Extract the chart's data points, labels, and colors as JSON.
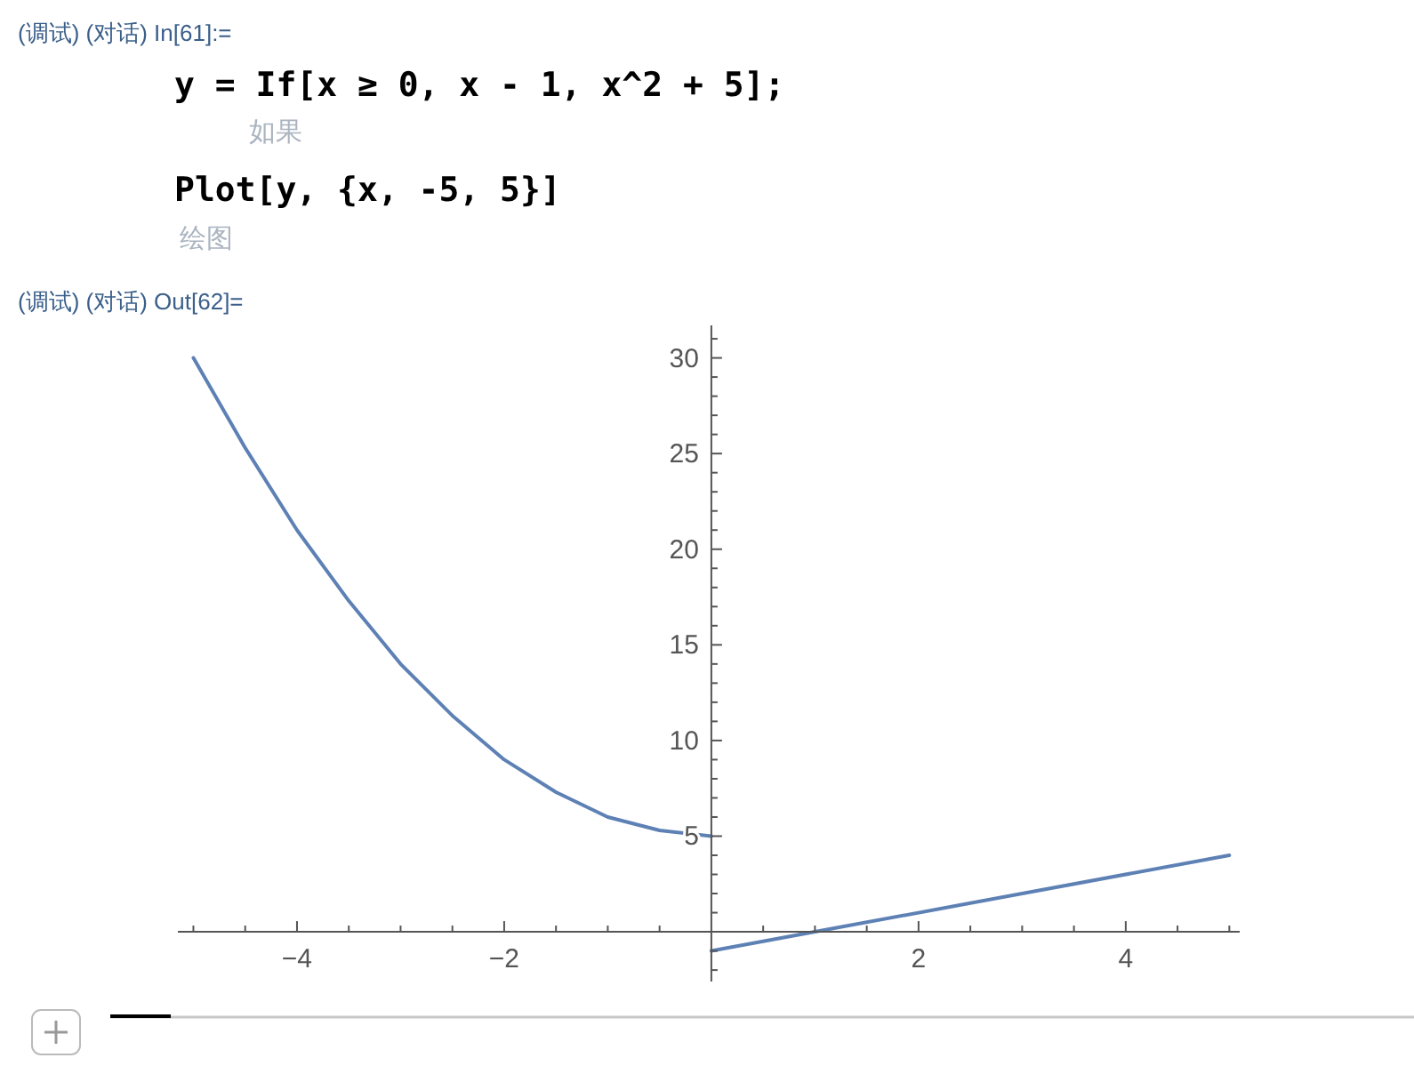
{
  "chart_data": {
    "type": "line",
    "annotations": [
      "(调试) (对话) In[61]:=",
      "y = If[x ≥ 0, x - 1, x^2 + 5];",
      "如果",
      "Plot[y, {x, -5, 5}]",
      "绘图",
      "(调试) (对话) Out[62]="
    ],
    "series": [
      {
        "color": "#5e81b5",
        "x": [
          -5,
          -4.5,
          -4,
          -3.5,
          -3,
          -2.5,
          -2,
          -1.5,
          -1,
          -0.5,
          0
        ],
        "values": [
          30,
          25.3,
          21,
          17.3,
          14,
          11.3,
          9,
          7.3,
          6,
          5.3,
          5
        ]
      },
      {
        "color": "#5e81b5",
        "x": [
          0,
          1,
          5
        ],
        "values": [
          -1,
          0,
          4
        ]
      }
    ],
    "xlim": [
      -5.15,
      5.1
    ],
    "ylim": [
      -2.6,
      31.7
    ],
    "xticks": [
      {
        "value": -5,
        "label": null
      },
      {
        "value": -4.5,
        "label": null
      },
      {
        "value": -4,
        "label": "−4"
      },
      {
        "value": -3.5,
        "label": null
      },
      {
        "value": -3,
        "label": null
      },
      {
        "value": -2.5,
        "label": null
      },
      {
        "value": -2,
        "label": "−2"
      },
      {
        "value": -1.5,
        "label": null
      },
      {
        "value": -1,
        "label": null
      },
      {
        "value": -0.5,
        "label": null
      },
      {
        "value": 0.5,
        "label": null
      },
      {
        "value": 1,
        "label": null
      },
      {
        "value": 1.5,
        "label": null
      },
      2,
      {
        "value": 2.5,
        "label": null
      },
      {
        "value": 3,
        "label": null
      },
      {
        "value": 3.5,
        "label": null
      },
      4,
      {
        "value": 4.5,
        "label": null
      },
      {
        "value": 5,
        "label": null
      }
    ],
    "yticks": [
      {
        "value": -2,
        "label": null
      },
      {
        "value": -1,
        "label": null
      },
      {
        "value": 1,
        "label": null
      },
      {
        "value": 2,
        "label": null
      },
      {
        "value": 3,
        "label": null
      },
      {
        "value": 4,
        "label": null
      },
      5,
      {
        "value": 6,
        "label": null
      },
      {
        "value": 7,
        "label": null
      },
      {
        "value": 8,
        "label": null
      },
      {
        "value": 9,
        "label": null
      },
      10,
      {
        "value": 11,
        "label": null
      },
      {
        "value": 12,
        "label": null
      },
      {
        "value": 13,
        "label": null
      },
      {
        "value": 14,
        "label": null
      },
      15,
      {
        "value": 16,
        "label": null
      },
      {
        "value": 17,
        "label": null
      },
      {
        "value": 18,
        "label": null
      },
      {
        "value": 19,
        "label": null
      },
      20,
      {
        "value": 21,
        "label": null
      },
      {
        "value": 22,
        "label": null
      },
      {
        "value": 23,
        "label": null
      },
      {
        "value": 24,
        "label": null
      },
      25,
      {
        "value": 26,
        "label": null
      },
      {
        "value": 27,
        "label": null
      },
      {
        "value": 28,
        "label": null
      },
      {
        "value": 29,
        "label": null
      },
      30,
      {
        "value": 31,
        "label": null
      }
    ],
    "grid": false,
    "marker": "none",
    "line_style": "solid"
  }
}
